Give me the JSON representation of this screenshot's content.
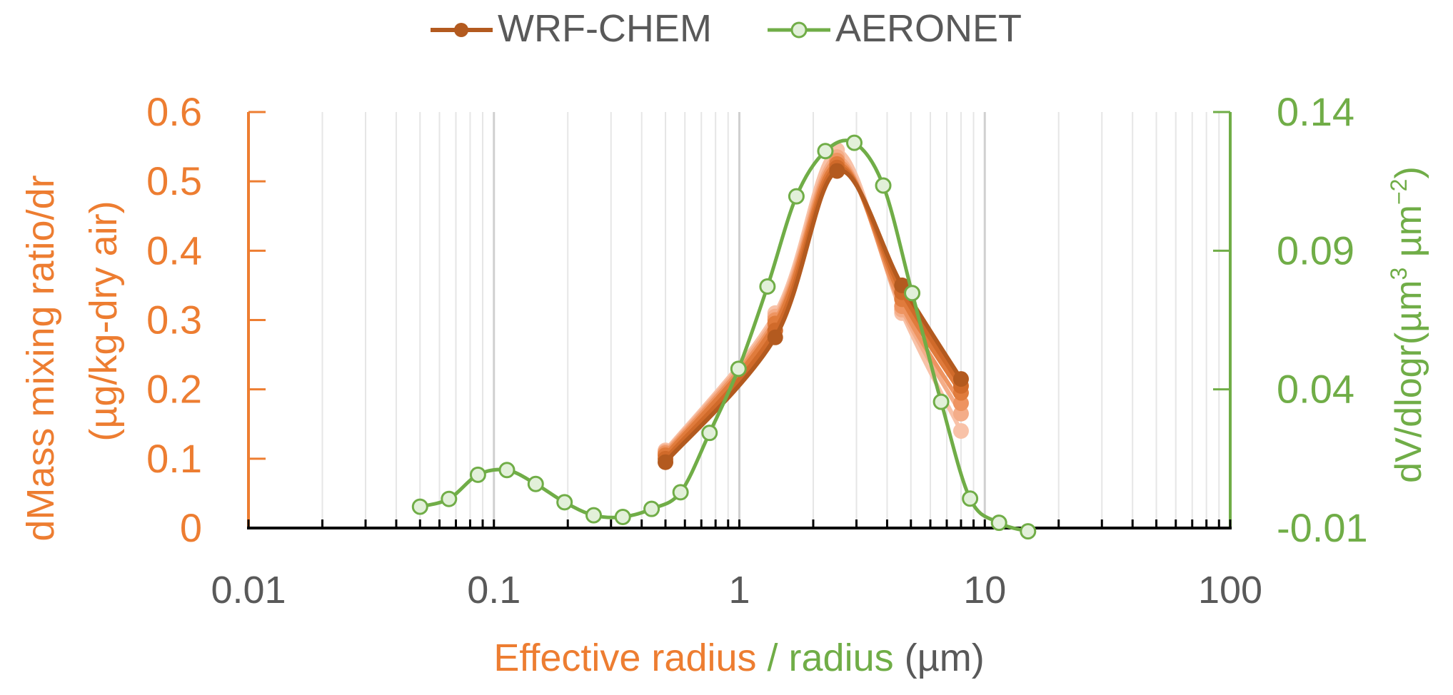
{
  "colors": {
    "left_axis": "#ED7D31",
    "right_axis": "#70AD47",
    "wrf_main": "#B35A1F",
    "aeronet_fill": "#E2F0D9",
    "grid": "#E6E6E6",
    "axis_black": "#000000",
    "tick_text": "#595959"
  },
  "legend": {
    "wrf_label": "WRF-CHEM",
    "aeronet_label": "AERONET"
  },
  "axes": {
    "left_title_line1": "dMass mixing ratio/dr",
    "left_title_line2": "(µg/kg-dry air)",
    "right_title_main": "dV/dlogr(µm",
    "right_title_sup1": "3",
    "right_title_mid": " µm",
    "right_title_sup2": "−2",
    "right_title_end": ")",
    "x_title_part1": "Effective radius",
    "x_title_part2": " / ",
    "x_title_part3": "radius",
    "x_title_part4": " (µm)"
  },
  "chart_data": {
    "type": "line",
    "x_scale": "log",
    "x_range": [
      0.01,
      100
    ],
    "x_ticks": [
      "0.01",
      "0.1",
      "1",
      "10",
      "100"
    ],
    "y_left_range": [
      0,
      0.6
    ],
    "y_left_ticks": [
      "0",
      "0.1",
      "0.2",
      "0.3",
      "0.4",
      "0.5",
      "0.6"
    ],
    "y_right_range": [
      -0.01,
      0.14
    ],
    "y_right_ticks": [
      "-0.01",
      "0.04",
      "0.09",
      "0.14"
    ],
    "grid": "vertical log gridlines",
    "legend_position": "top-center",
    "series": [
      {
        "name": "WRF-CHEM",
        "axis": "left",
        "ensemble": [
          {
            "x": [
              0.5,
              1.4,
              2.5,
              4.6,
              8.0
            ],
            "y": [
              0.095,
              0.275,
              0.515,
              0.35,
              0.215
            ]
          },
          {
            "x": [
              0.5,
              1.4,
              2.5,
              4.6,
              8.0
            ],
            "y": [
              0.1,
              0.285,
              0.52,
              0.34,
              0.205
            ]
          },
          {
            "x": [
              0.5,
              1.4,
              2.5,
              4.6,
              8.0
            ],
            "y": [
              0.105,
              0.295,
              0.525,
              0.33,
              0.195
            ]
          },
          {
            "x": [
              0.5,
              1.4,
              2.5,
              4.6,
              8.0
            ],
            "y": [
              0.108,
              0.3,
              0.53,
              0.32,
              0.18
            ]
          },
          {
            "x": [
              0.5,
              1.4,
              2.5,
              4.6,
              8.0
            ],
            "y": [
              0.11,
              0.305,
              0.535,
              0.315,
              0.165
            ]
          },
          {
            "x": [
              0.5,
              1.4,
              2.5,
              4.6,
              8.0
            ],
            "y": [
              0.112,
              0.31,
              0.545,
              0.31,
              0.14
            ]
          }
        ]
      },
      {
        "name": "AERONET",
        "axis": "right",
        "x": [
          0.05,
          0.0656,
          0.0861,
          0.113,
          0.148,
          0.194,
          0.255,
          0.335,
          0.439,
          0.576,
          0.756,
          0.992,
          1.302,
          1.708,
          2.241,
          2.94,
          3.857,
          5.06,
          6.639,
          8.71,
          11.43,
          15.0
        ],
        "y": [
          -0.0023,
          0.0005,
          0.0092,
          0.0109,
          0.0059,
          -0.0007,
          -0.0054,
          -0.006,
          -0.0031,
          0.0029,
          0.0243,
          0.0474,
          0.0771,
          0.1096,
          0.1259,
          0.1289,
          0.1135,
          0.0747,
          0.0355,
          0.0006,
          -0.0081,
          -0.0112
        ]
      }
    ]
  }
}
